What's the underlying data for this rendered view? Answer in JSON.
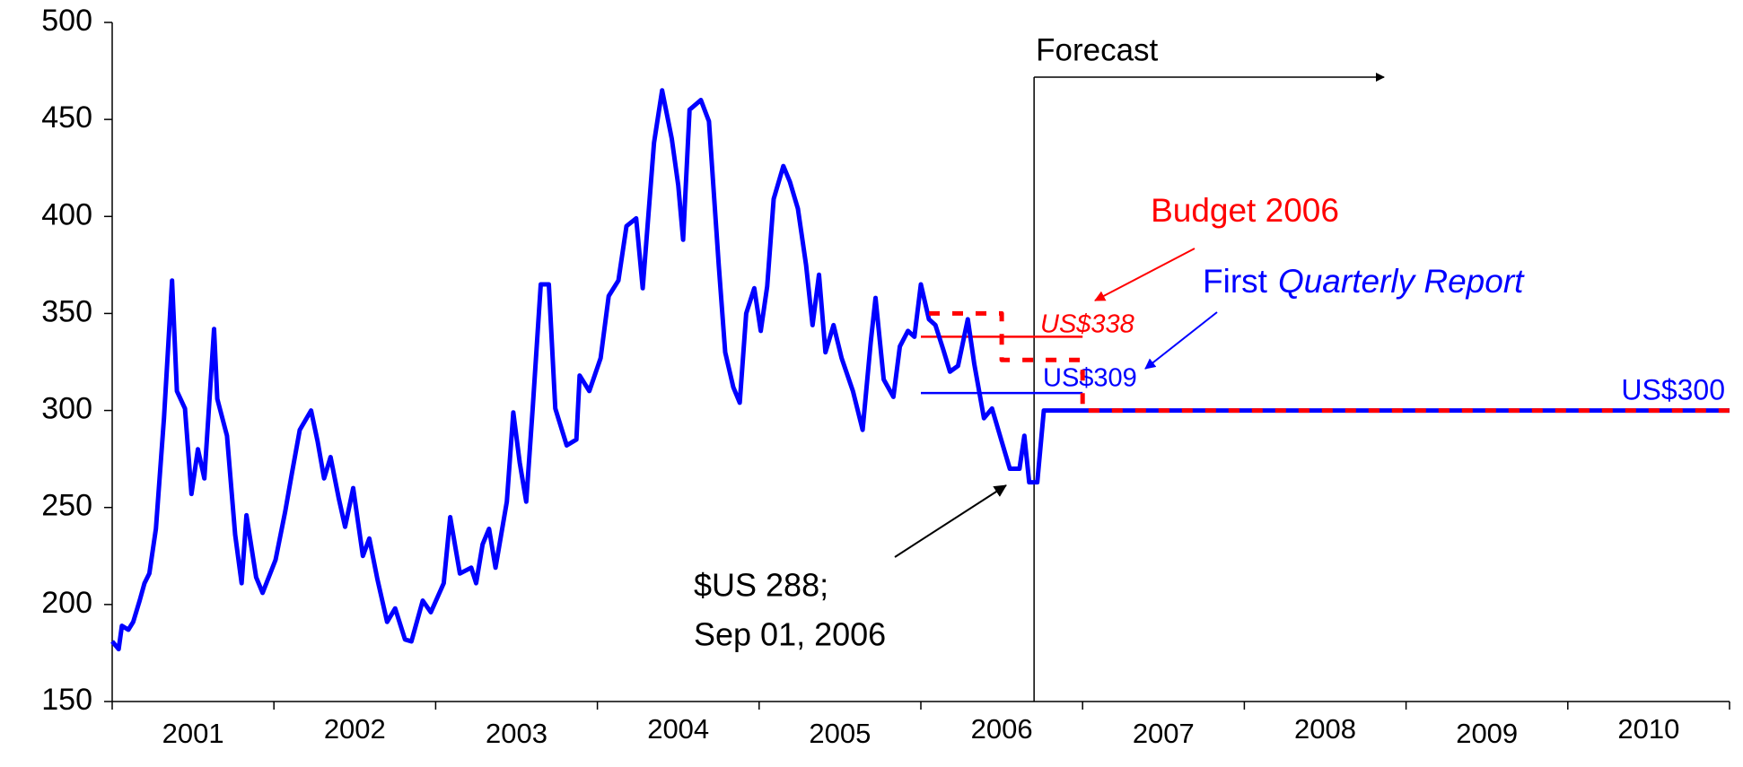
{
  "chart_data": {
    "type": "line",
    "categories": [
      "2001",
      "2002",
      "2003",
      "2004",
      "2005",
      "2006",
      "2007",
      "2008",
      "2009",
      "2010"
    ],
    "xlim": [
      2001,
      2011
    ],
    "xticks": [
      2001,
      2002,
      2003,
      2004,
      2005,
      2006,
      2007,
      2008,
      2009,
      2010,
      2011
    ],
    "ylim": [
      150,
      500
    ],
    "yticks": [
      150,
      200,
      250,
      300,
      350,
      400,
      450,
      500
    ],
    "series": [
      {
        "color": "#0000ff",
        "dashed": false,
        "x": [
          2001.0,
          2001.04,
          2001.06,
          2001.1,
          2001.13,
          2001.17,
          2001.2,
          2001.23,
          2001.27,
          2001.32,
          2001.37,
          2001.4,
          2001.45,
          2001.49,
          2001.53,
          2001.57,
          2001.63,
          2001.65,
          2001.71,
          2001.76,
          2001.8,
          2001.83,
          2001.89,
          2001.93,
          2002.01,
          2002.07,
          2002.11,
          2002.16,
          2002.23,
          2002.27,
          2002.31,
          2002.35,
          2002.4,
          2002.44,
          2002.49,
          2002.55,
          2002.59,
          2002.64,
          2002.7,
          2002.75,
          2002.81,
          2002.85,
          2002.92,
          2002.97,
          2003.05,
          2003.09,
          2003.15,
          2003.22,
          2003.25,
          2003.29,
          2003.33,
          2003.37,
          2003.44,
          2003.48,
          2003.52,
          2003.56,
          2003.6,
          2003.65,
          2003.7,
          2003.74,
          2003.81,
          2003.87,
          2003.89,
          2003.95,
          2004.02,
          2004.07,
          2004.13,
          2004.18,
          2004.24,
          2004.28,
          2004.35,
          2004.4,
          2004.46,
          2004.5,
          2004.53,
          2004.57,
          2004.64,
          2004.69,
          2004.75,
          2004.79,
          2004.84,
          2004.88,
          2004.92,
          2004.97,
          2005.01,
          2005.05,
          2005.09,
          2005.15,
          2005.19,
          2005.24,
          2005.29,
          2005.33,
          2005.37,
          2005.41,
          2005.46,
          2005.51,
          2005.58,
          2005.64,
          2005.69,
          2005.72,
          2005.77,
          2005.83,
          2005.87,
          2005.92,
          2005.96,
          2006.0,
          2006.05,
          2006.09,
          2006.14,
          2006.18,
          2006.23,
          2006.29,
          2006.33,
          2006.39,
          2006.44,
          2006.5,
          2006.55,
          2006.61,
          2006.64,
          2006.67,
          2006.72,
          2006.76,
          2011.0
        ],
        "values": [
          181,
          177,
          189,
          187,
          191,
          202,
          211,
          216,
          239,
          296,
          367,
          310,
          301,
          257,
          280,
          265,
          342,
          306,
          287,
          236,
          211,
          246,
          214,
          206,
          223,
          248,
          267,
          290,
          300,
          284,
          265,
          276,
          255,
          240,
          260,
          225,
          234,
          213,
          191,
          198,
          182,
          181,
          202,
          196,
          211,
          245,
          216,
          219,
          211,
          231,
          239,
          219,
          253,
          299,
          273,
          253,
          301,
          365,
          365,
          301,
          282,
          285,
          318,
          310,
          327,
          359,
          367,
          395,
          399,
          363,
          438,
          465,
          440,
          416,
          388,
          455,
          460,
          449,
          375,
          330,
          312,
          304,
          350,
          363,
          341,
          364,
          409,
          426,
          418,
          404,
          375,
          344,
          370,
          330,
          344,
          327,
          310,
          290,
          335,
          358,
          316,
          307,
          333,
          341,
          338,
          365,
          347,
          344,
          331,
          320,
          323,
          347,
          324,
          296,
          301,
          284,
          270,
          270,
          287,
          263,
          263,
          300,
          300
        ]
      },
      {
        "color": "#ff0000",
        "dashed": true,
        "x": [
          2006.05,
          2006.5,
          2006.5,
          2007.0,
          2007.0,
          2011.0
        ],
        "values": [
          350,
          350,
          326,
          326,
          300,
          300
        ]
      }
    ],
    "reference_lines": [
      {
        "value": 338,
        "x": [
          2006.0,
          2007.0
        ],
        "color": "#ff0000",
        "label": "US$338"
      },
      {
        "value": 309,
        "x": [
          2006.0,
          2007.0
        ],
        "color": "#0000ff",
        "label": "US$309"
      }
    ],
    "end_label": "US$300",
    "forecast": {
      "text": "Forecast",
      "x": 2006.7
    },
    "budget_label": "Budget 2006",
    "report_label": [
      "First",
      "Quarterly Report"
    ],
    "point_note": [
      "$US 288;",
      "Sep 01, 2006"
    ]
  }
}
